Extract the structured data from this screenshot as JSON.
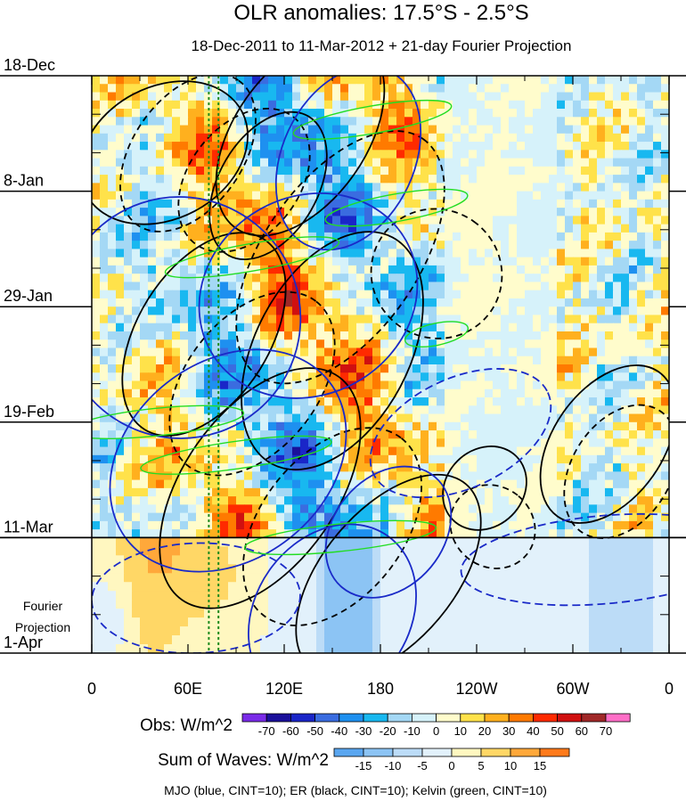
{
  "chart_data": {
    "type": "heatmap",
    "title": "OLR anomalies: 17.5°S - 2.5°S",
    "subtitle": "18-Dec-2011 to 11-Mar-2012 + 21-day Fourier Projection",
    "x_ticks": [
      {
        "label": "0",
        "lon": 0
      },
      {
        "label": "60E",
        "lon": 60
      },
      {
        "label": "120E",
        "lon": 120
      },
      {
        "label": "180",
        "lon": 180
      },
      {
        "label": "120W",
        "lon": 240
      },
      {
        "label": "60W",
        "lon": 300
      },
      {
        "label": "0",
        "lon": 360
      }
    ],
    "x_range": [
      0,
      360
    ],
    "y_ticks": [
      {
        "label": "18-Dec",
        "day": 0
      },
      {
        "label": "8-Jan",
        "day": 21
      },
      {
        "label": "29-Jan",
        "day": 42
      },
      {
        "label": "19-Feb",
        "day": 63
      },
      {
        "label": "11-Mar",
        "day": 84
      },
      {
        "label": "1-Apr",
        "day": 105
      }
    ],
    "y_range_days": [
      0,
      105
    ],
    "forecast_start_day": 84,
    "projection_label_1": "Fourier",
    "projection_label_2": "Projection",
    "reference_lines_lon": [
      73,
      79
    ],
    "obs_colorbar": {
      "label": "Obs: W/m^2",
      "levels": [
        -70,
        -60,
        -50,
        -40,
        -30,
        -20,
        -10,
        0,
        10,
        20,
        30,
        40,
        50,
        60,
        70
      ],
      "colors": [
        "#7a2be8",
        "#1a109a",
        "#1a26c8",
        "#3a6ce0",
        "#1e90f0",
        "#18b8f0",
        "#a4d8f5",
        "#d6f2fa",
        "#fffccc",
        "#ffe24a",
        "#ffb01e",
        "#ff7a00",
        "#ff2a00",
        "#d01010",
        "#a02828",
        "#ff6ec7"
      ]
    },
    "waves_colorbar": {
      "label": "Sum of Waves: W/m^2",
      "levels": [
        -15,
        -10,
        -5,
        0,
        5,
        10,
        15
      ],
      "colors": [
        "#5aa6f0",
        "#8cc4f4",
        "#bcdcf7",
        "#e2f1fb",
        "#fff7c0",
        "#ffd766",
        "#ffa83a",
        "#ff7a1a"
      ]
    },
    "footer": "MJO (blue, CINT=10); ER (black, CINT=10); Kelvin (green, CINT=10)",
    "series": [
      {
        "name": "MJO",
        "color": "#1a2ac8",
        "cint": 10
      },
      {
        "name": "ER",
        "color": "#000000",
        "cint": 10
      },
      {
        "name": "Kelvin",
        "color": "#22dd22",
        "cint": 10
      }
    ]
  }
}
